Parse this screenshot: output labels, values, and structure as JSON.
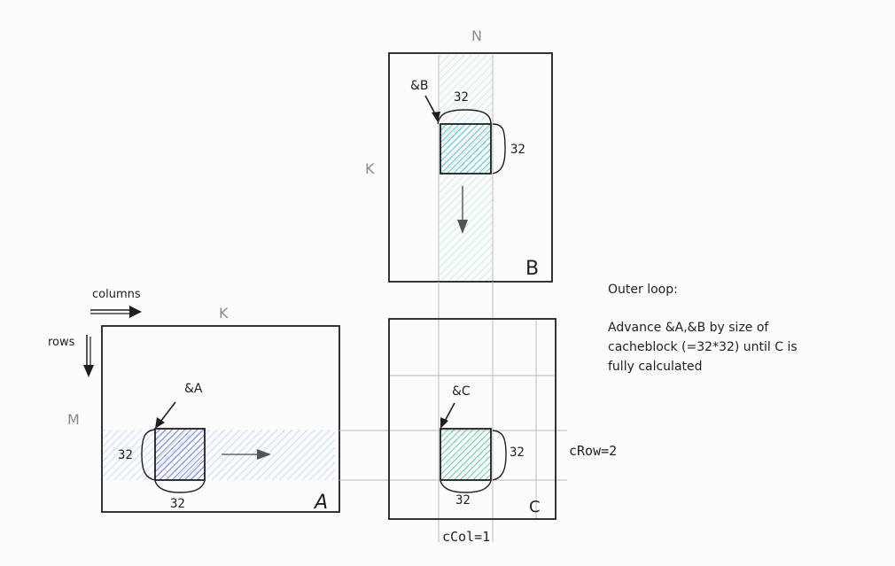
{
  "labels": {
    "n": "N",
    "k_top": "K",
    "k_left": "K",
    "m": "M",
    "columns": "columns",
    "rows": "rows",
    "matrix_a": "A",
    "matrix_b": "B",
    "matrix_c": "C",
    "ptr_a": "&A",
    "ptr_b": "&B",
    "ptr_c": "&C",
    "a_block_h": "32",
    "a_block_w": "32",
    "b_block_w": "32",
    "b_block_h": "32",
    "c_block_h": "32",
    "c_block_w": "32",
    "c_row": "cRow=2",
    "c_col": "cCol=1"
  },
  "note": {
    "line1": "Outer loop:",
    "line2": "Advance &A,&B by size of",
    "line3": "cacheblock (=32*32) until C is",
    "line4": "fully calculated"
  },
  "colors": {
    "a_strip": "#a5c4ff",
    "a_block": "#4a63d6",
    "b_strip": "#a8e6d8",
    "b_block": "#2bb3c4",
    "c_block": "#2ec27e",
    "ink": "#1e1e1e",
    "gray": "#8a8a8a"
  }
}
